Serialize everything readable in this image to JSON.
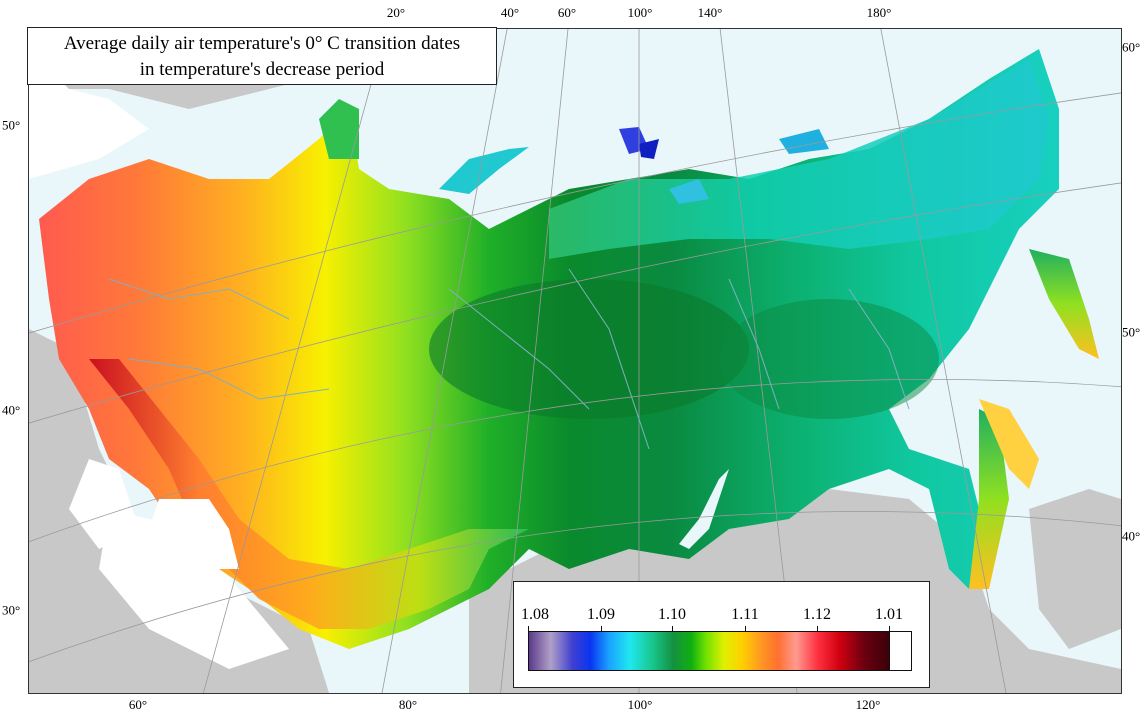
{
  "title": {
    "line1": "Average daily air temperature's 0° C transition dates",
    "line2": "in temperature's decrease period"
  },
  "top_labels": [
    "20°",
    "40°",
    "60°",
    "100°",
    "140°",
    "180°"
  ],
  "bottom_labels": [
    "60°",
    "80°",
    "100°",
    "120°"
  ],
  "left_labels": [
    "50°",
    "40°",
    "30°"
  ],
  "right_labels": [
    "60°",
    "50°",
    "40°"
  ],
  "legend": {
    "ticks": [
      "1.08",
      "1.09",
      "1.10",
      "1.11",
      "1.12",
      "1.01"
    ],
    "colors": [
      "#5a3a8a",
      "#0a34f0",
      "#20e8f0",
      "#149040",
      "#e0f000",
      "#ff9a20",
      "#ff3040",
      "#3a0008",
      "#ffffff"
    ]
  },
  "map_colors": {
    "sea": "#e9f6fa",
    "foreign_land": "#c8c8c8",
    "graticule": "#9a9a9a",
    "borders": "#7fb0c0"
  }
}
